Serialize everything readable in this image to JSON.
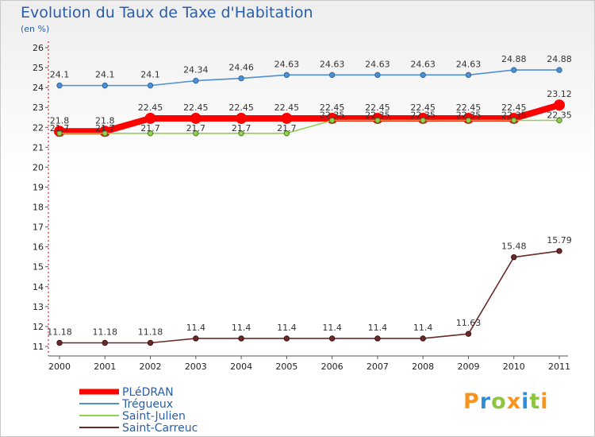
{
  "title": "Evolution du Taux de Taxe d'Habitation",
  "unit_label": "(en %)",
  "logo_text": "Proxiti",
  "chart_data": {
    "type": "line",
    "x": [
      2000,
      2001,
      2002,
      2003,
      2004,
      2005,
      2006,
      2007,
      2008,
      2009,
      2010,
      2011
    ],
    "y_ticks": [
      11,
      12,
      13,
      14,
      15,
      16,
      17,
      18,
      19,
      20,
      21,
      22,
      23,
      24,
      25,
      26
    ],
    "ylim": [
      11,
      26
    ],
    "grid": false,
    "legend_position": "bottom-left",
    "series": [
      {
        "name": "PLéDRAN",
        "color": "#ff0000",
        "values": [
          21.8,
          21.8,
          22.45,
          22.45,
          22.45,
          22.45,
          22.45,
          22.45,
          22.45,
          22.45,
          22.45,
          23.12
        ],
        "labels": [
          "21.8",
          "21.8",
          "22.45",
          "22.45",
          "22.45",
          "22.45",
          "22.45",
          "22.45",
          "22.45",
          "22.45",
          "22.45",
          "23.12"
        ]
      },
      {
        "name": "Trégueux",
        "color": "#4f90d0",
        "values": [
          24.1,
          24.1,
          24.1,
          24.34,
          24.46,
          24.63,
          24.63,
          24.63,
          24.63,
          24.63,
          24.88,
          24.88
        ],
        "labels": [
          "24.1",
          "24.1",
          "24.1",
          "24.34",
          "24.46",
          "24.63",
          "24.63",
          "24.63",
          "24.63",
          "24.63",
          "24.88",
          "24.88"
        ]
      },
      {
        "name": "Saint-Julien",
        "color": "#92d050",
        "values": [
          21.7,
          21.7,
          21.7,
          21.7,
          21.7,
          21.7,
          22.35,
          22.35,
          22.35,
          22.35,
          22.35,
          22.35
        ],
        "labels": [
          "21.7",
          "21.7",
          "21.7",
          "21.7",
          "21.7",
          "21.7",
          "22.35",
          "22.35",
          "22.35",
          "22.35",
          "22.35",
          "22.35"
        ]
      },
      {
        "name": "Saint-Carreuc",
        "color": "#6b2a2a",
        "values": [
          11.18,
          11.18,
          11.18,
          11.4,
          11.4,
          11.4,
          11.4,
          11.4,
          11.4,
          11.63,
          15.48,
          15.79
        ],
        "labels": [
          "11.18",
          "11.18",
          "11.18",
          "11.4",
          "11.4",
          "11.4",
          "11.4",
          "11.4",
          "11.4",
          "11.63",
          "15.48",
          "15.79"
        ]
      }
    ]
  }
}
